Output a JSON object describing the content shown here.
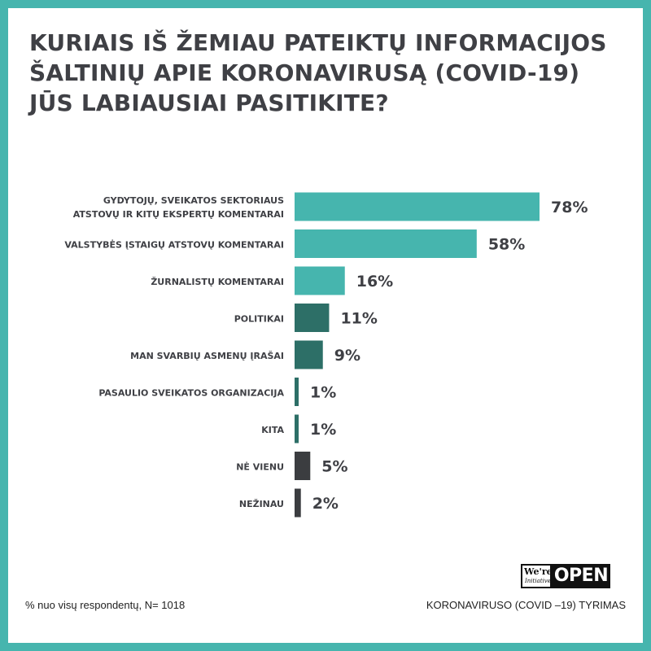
{
  "title_lines": [
    "KURIAIS IŠ ŽEMIAU PATEIKTŲ INFORMACIJOS",
    "ŠALTINIŲ APIE KORONAVIRUSĄ (COVID-19)",
    "JŪS LABIAUSIAI PASITIKITE?"
  ],
  "chart_data": {
    "type": "bar",
    "orientation": "horizontal",
    "title": "KURIAIS IŠ ŽEMIAU PATEIKTŲ INFORMACIJOS ŠALTINIŲ APIE KORONAVIRUSĄ (COVID-19) JŪS LABIAUSIAI PASITIKITE?",
    "categories": [
      [
        "GYDYTOJŲ, SVEIKATOS SEKTORIAUS",
        "ATSTOVŲ IR KITŲ EKSPERTŲ KOMENTARAI"
      ],
      [
        "VALSTYBĖS ĮSTAIGŲ ATSTOVŲ KOMENTARAI"
      ],
      [
        "ŽURNALISTŲ KOMENTARAI"
      ],
      [
        "POLITIKAI"
      ],
      [
        "MAN SVARBIŲ ASMENŲ ĮRAŠAI"
      ],
      [
        "PASAULIO SVEIKATOS ORGANIZACIJA"
      ],
      [
        "KITA"
      ],
      [
        "NĖ VIENU"
      ],
      [
        "NEŽINAU"
      ]
    ],
    "values": [
      78,
      58,
      16,
      11,
      9,
      1,
      1,
      5,
      2
    ],
    "value_labels": [
      "78%",
      "58%",
      "16%",
      "11%",
      "9%",
      "1%",
      "1%",
      "5%",
      "2%"
    ],
    "colors": [
      "#46b5ae",
      "#46b5ae",
      "#46b5ae",
      "#2d6f67",
      "#2d6f67",
      "#2d6f67",
      "#2d6f67",
      "#3b3d40",
      "#3b3d40"
    ],
    "xlim": [
      0,
      78
    ],
    "grid": false,
    "legend": "none"
  },
  "footer": {
    "note": "% nuo visų respondentų, N= 1018",
    "source": "KORONAVIRUSO (COVID –19) TYRIMAS"
  },
  "logo": {
    "we": "We're",
    "sub": "Initiative",
    "open": "OPEN"
  },
  "colors": {
    "frame": "#46b5ae",
    "title": "#3f4045",
    "bar_light": "#46b5ae",
    "bar_dark": "#2d6f67",
    "bar_gray": "#3b3d40"
  }
}
